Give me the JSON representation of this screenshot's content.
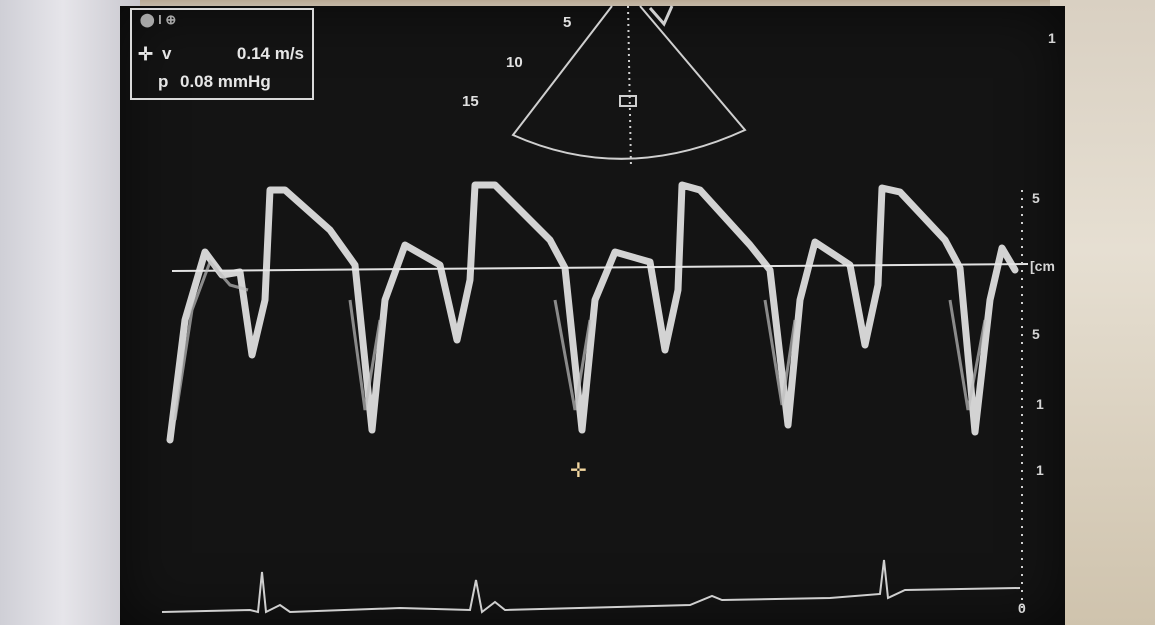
{
  "info": {
    "mode_label": "⬤ I ⊕",
    "velocity_label": "v",
    "velocity_value": "0.14 m/s",
    "pressure_label": "p",
    "pressure_value": "0.08 mmHg"
  },
  "sector": {
    "depth_labels": [
      "5",
      "10",
      "15"
    ]
  },
  "scale": {
    "top_marker": "1",
    "labels": [
      "5",
      "[cm",
      "5",
      "1",
      "1",
      "0"
    ]
  },
  "icons": {
    "velocity_cursor": "crosshair-icon",
    "doppler_cursor": "crosshair-icon"
  }
}
